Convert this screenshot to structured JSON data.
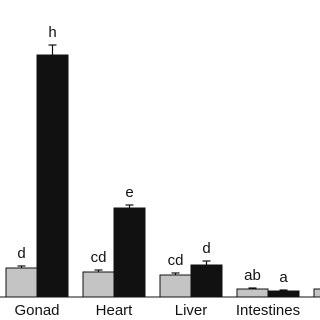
{
  "chart_data": {
    "type": "bar",
    "categories": [
      "Gonad",
      "Heart",
      "Liver",
      "Intestines",
      null
    ],
    "series": [
      {
        "color": "#c4c4c4",
        "values": [
          29,
          25,
          22,
          8,
          8
        ],
        "errors": [
          2,
          2,
          2,
          1,
          1
        ],
        "labels": [
          "d",
          "cd",
          "cd",
          "ab",
          null
        ]
      },
      {
        "color": "#111111",
        "values": [
          242,
          89,
          32,
          6,
          null
        ],
        "errors": [
          10,
          3,
          4,
          1,
          null
        ],
        "labels": [
          "h",
          "e",
          "d",
          "a",
          null
        ]
      }
    ],
    "ylim": [
      0,
      250
    ]
  }
}
